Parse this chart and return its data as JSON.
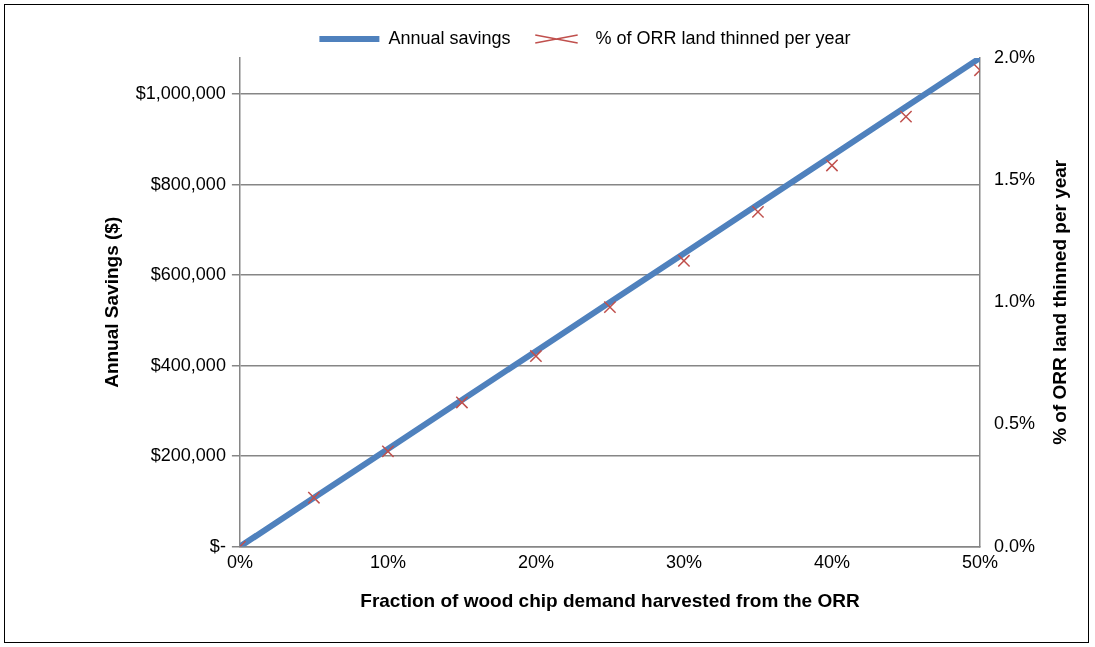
{
  "chart_data": {
    "type": "line",
    "xlabel": "Fraction of wood chip demand harvested from the ORR",
    "ylabel": "Annual Savings ($)",
    "y2label": "% of ORR land thinned per year",
    "x": [
      0,
      5,
      10,
      15,
      20,
      25,
      30,
      35,
      40,
      45,
      50
    ],
    "xlim": [
      0,
      50
    ],
    "xticks": [
      {
        "value": 0,
        "label": "0%"
      },
      {
        "value": 10,
        "label": "10%"
      },
      {
        "value": 20,
        "label": "20%"
      },
      {
        "value": 30,
        "label": "30%"
      },
      {
        "value": 40,
        "label": "40%"
      },
      {
        "value": 50,
        "label": "50%"
      }
    ],
    "ylim": [
      0,
      1080000
    ],
    "yticks": [
      {
        "value": 0,
        "label": "$-"
      },
      {
        "value": 200000,
        "label": "$200,000"
      },
      {
        "value": 400000,
        "label": "$400,000"
      },
      {
        "value": 600000,
        "label": "$600,000"
      },
      {
        "value": 800000,
        "label": "$800,000"
      },
      {
        "value": 1000000,
        "label": "$1,000,000"
      }
    ],
    "y2lim": [
      0,
      2
    ],
    "y2ticks": [
      {
        "value": 0,
        "label": "0.0%"
      },
      {
        "value": 0.5,
        "label": "0.5%"
      },
      {
        "value": 1,
        "label": "1.0%"
      },
      {
        "value": 1.5,
        "label": "1.5%"
      },
      {
        "value": 2,
        "label": "2.0%"
      }
    ],
    "series": [
      {
        "name": "Annual savings",
        "type": "line",
        "color": "#4f81bd",
        "marker": "none",
        "values": [
          0,
          108000,
          216000,
          324000,
          432000,
          540000,
          648000,
          756000,
          864000,
          972000,
          1080000
        ]
      },
      {
        "name": "% of ORR land thinned per year",
        "type": "scatter",
        "axis": "y2",
        "color": "#c0504d",
        "marker": "cross",
        "values": [
          0,
          0.2,
          0.39,
          0.59,
          0.78,
          0.98,
          1.17,
          1.37,
          1.56,
          1.76,
          1.95
        ]
      }
    ],
    "grid": "y",
    "legend": "top"
  }
}
